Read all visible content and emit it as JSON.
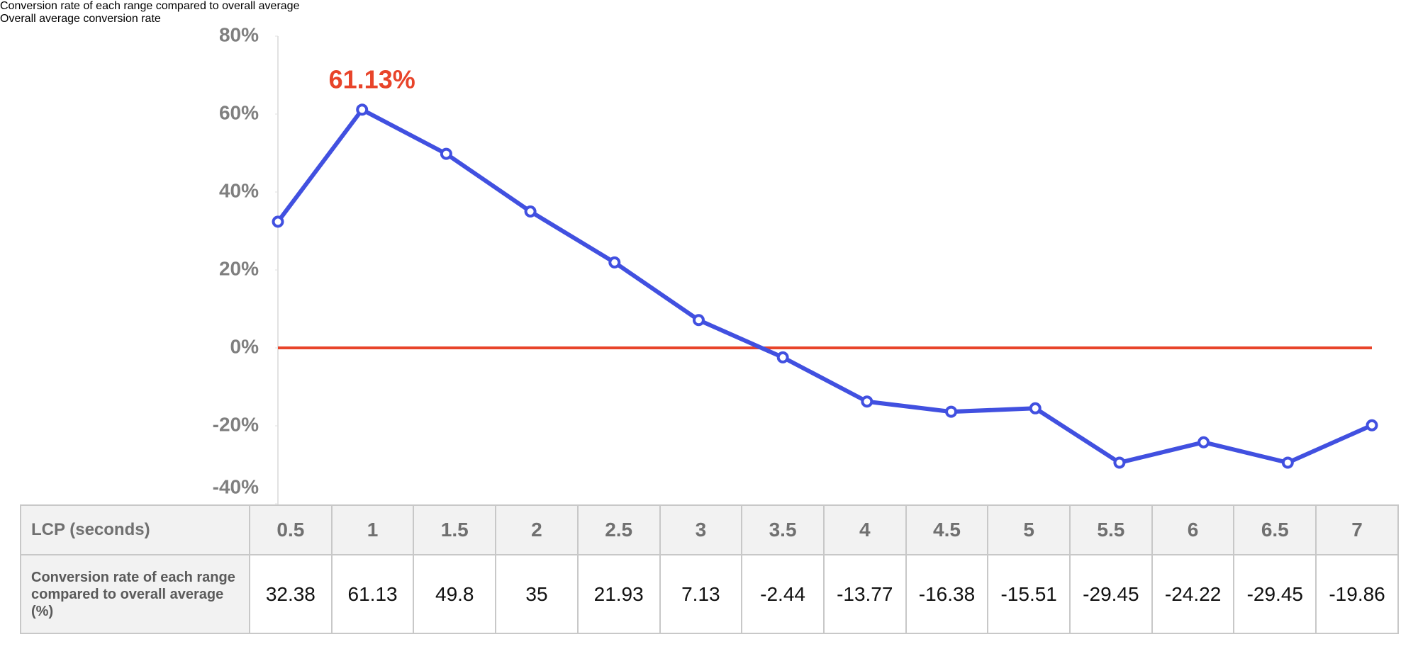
{
  "chart_data": {
    "type": "line",
    "x": [
      0.5,
      1,
      1.5,
      2,
      2.5,
      3,
      3.5,
      4,
      4.5,
      5,
      5.5,
      6,
      6.5,
      7
    ],
    "xlim": [
      0.5,
      7
    ],
    "xlabel": "LCP (seconds)",
    "ylabel": "Conversion rate of each range compared to overall average (%)",
    "series": [
      {
        "name": "Conversion rate of each range compared to overall average",
        "color": "#4150e0",
        "values": [
          32.38,
          61.13,
          49.8,
          35,
          21.93,
          7.13,
          -2.44,
          -13.77,
          -16.38,
          -15.51,
          -29.45,
          -24.22,
          -29.45,
          -19.86
        ]
      },
      {
        "name": "Overall average conversion rate",
        "color": "#e8442a",
        "values": [
          0,
          0,
          0,
          0,
          0,
          0,
          0,
          0,
          0,
          0,
          0,
          0,
          0,
          0
        ]
      }
    ],
    "annotations": [
      {
        "text": "61.13%",
        "x": 1,
        "y": 61.13,
        "color": "#e8442a"
      }
    ],
    "ylim": [
      -40,
      80
    ],
    "yticks": [
      {
        "value": -40,
        "label": "-40%"
      },
      {
        "value": -20,
        "label": "-20%"
      },
      {
        "value": 0,
        "label": "0%"
      },
      {
        "value": 20,
        "label": "20%"
      },
      {
        "value": 40,
        "label": "40%"
      },
      {
        "value": 60,
        "label": "60%"
      },
      {
        "value": 80,
        "label": "80%"
      }
    ],
    "legend": "top-right"
  }
}
